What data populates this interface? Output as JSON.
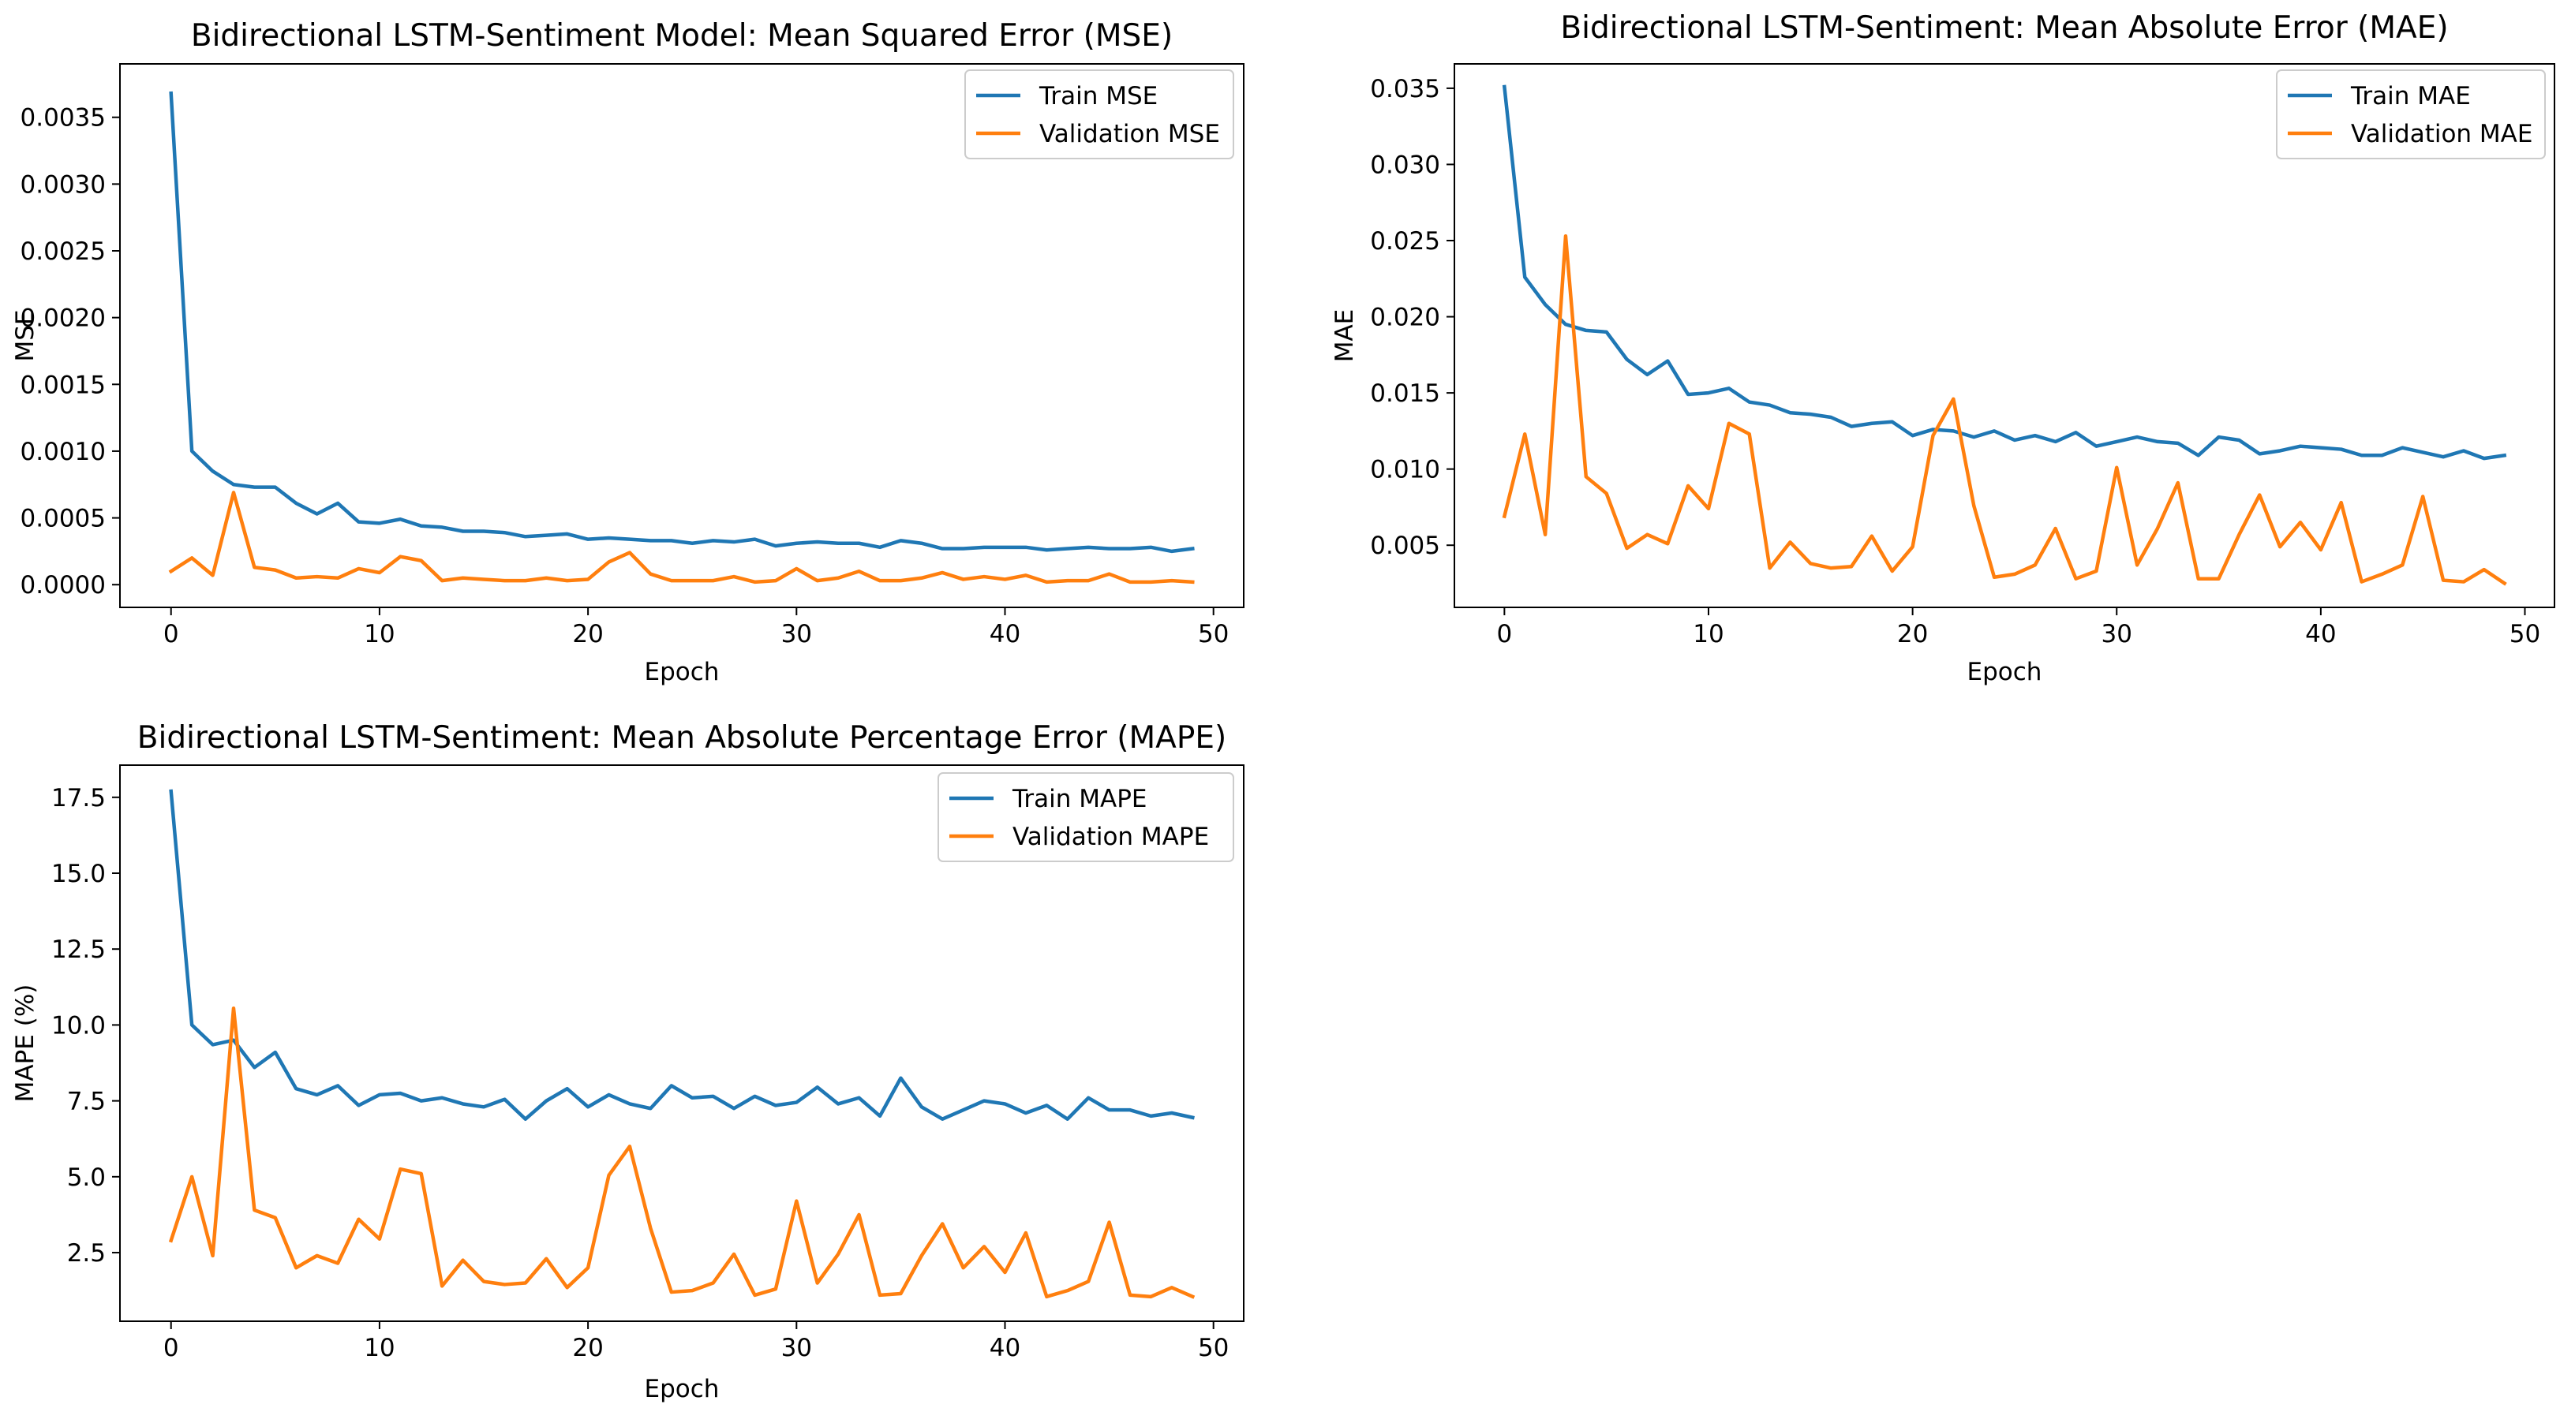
{
  "colors": {
    "train": "#1f77b4",
    "validation": "#ff7f0e"
  },
  "chart_data": [
    {
      "type": "line",
      "title": "Bidirectional LSTM-Sentiment Model: Mean Squared Error (MSE)",
      "xlabel": "Epoch",
      "ylabel": "MSE",
      "xlim": [
        -2.45,
        51.45
      ],
      "ylim": [
        -0.00017,
        0.0039
      ],
      "xticks": [
        0,
        10,
        20,
        30,
        40,
        50
      ],
      "xtick_labels": [
        "0",
        "10",
        "20",
        "30",
        "40",
        "50"
      ],
      "yticks": [
        0,
        0.0005,
        0.001,
        0.0015,
        0.002,
        0.0025,
        0.003,
        0.0035
      ],
      "ytick_labels": [
        "0.0000",
        "0.0005",
        "0.0010",
        "0.0015",
        "0.0020",
        "0.0025",
        "0.0030",
        "0.0035"
      ],
      "grid": false,
      "legend_position": "top-right",
      "series": [
        {
          "name": "Train MSE",
          "color": "#1f77b4",
          "values": [
            0.00368,
            0.001,
            0.00085,
            0.00075,
            0.00073,
            0.00073,
            0.00061,
            0.00053,
            0.00061,
            0.00047,
            0.00046,
            0.00049,
            0.00044,
            0.00043,
            0.0004,
            0.0004,
            0.00039,
            0.00036,
            0.00037,
            0.00038,
            0.00034,
            0.00035,
            0.00034,
            0.00033,
            0.00033,
            0.00031,
            0.00033,
            0.00032,
            0.00034,
            0.00029,
            0.00031,
            0.00032,
            0.00031,
            0.00031,
            0.00028,
            0.00033,
            0.00031,
            0.00027,
            0.00027,
            0.00028,
            0.00028,
            0.00028,
            0.00026,
            0.00027,
            0.00028,
            0.00027,
            0.00027,
            0.00028,
            0.00025,
            0.00027
          ]
        },
        {
          "name": "Validation MSE",
          "color": "#ff7f0e",
          "values": [
            0.0001,
            0.0002,
            7e-05,
            0.00069,
            0.00013,
            0.00011,
            5e-05,
            6e-05,
            5e-05,
            0.00012,
            9e-05,
            0.00021,
            0.00018,
            3e-05,
            5e-05,
            4e-05,
            3e-05,
            3e-05,
            5e-05,
            3e-05,
            4e-05,
            0.00017,
            0.00024,
            8e-05,
            3e-05,
            3e-05,
            3e-05,
            6e-05,
            2e-05,
            3e-05,
            0.00012,
            3e-05,
            5e-05,
            0.0001,
            3e-05,
            3e-05,
            5e-05,
            9e-05,
            4e-05,
            6e-05,
            4e-05,
            7e-05,
            2e-05,
            3e-05,
            3e-05,
            8e-05,
            2e-05,
            2e-05,
            3e-05,
            2e-05
          ]
        }
      ]
    },
    {
      "type": "line",
      "title": "Bidirectional LSTM-Sentiment: Mean Absolute Error (MAE)",
      "xlabel": "Epoch",
      "ylabel": "MAE",
      "xlim": [
        -2.45,
        51.45
      ],
      "ylim": [
        0.00092,
        0.0366
      ],
      "xticks": [
        0,
        10,
        20,
        30,
        40,
        50
      ],
      "xtick_labels": [
        "0",
        "10",
        "20",
        "30",
        "40",
        "50"
      ],
      "yticks": [
        0.005,
        0.01,
        0.015,
        0.02,
        0.025,
        0.03,
        0.035
      ],
      "ytick_labels": [
        "0.005",
        "0.010",
        "0.015",
        "0.020",
        "0.025",
        "0.030",
        "0.035"
      ],
      "grid": false,
      "legend_position": "top-right",
      "series": [
        {
          "name": "Train MAE",
          "color": "#1f77b4",
          "values": [
            0.0351,
            0.0226,
            0.0208,
            0.0195,
            0.0191,
            0.019,
            0.0172,
            0.0162,
            0.0171,
            0.0149,
            0.015,
            0.0153,
            0.0144,
            0.0142,
            0.0137,
            0.0136,
            0.0134,
            0.0128,
            0.013,
            0.0131,
            0.0122,
            0.0126,
            0.0125,
            0.0121,
            0.0125,
            0.0119,
            0.0122,
            0.0118,
            0.0124,
            0.0115,
            0.0118,
            0.0121,
            0.0118,
            0.0117,
            0.0109,
            0.0121,
            0.0119,
            0.011,
            0.0112,
            0.0115,
            0.0114,
            0.0113,
            0.0109,
            0.0109,
            0.0114,
            0.0111,
            0.0108,
            0.0112,
            0.0107,
            0.0109
          ]
        },
        {
          "name": "Validation MAE",
          "color": "#ff7f0e",
          "values": [
            0.0069,
            0.0123,
            0.0057,
            0.0253,
            0.0095,
            0.0084,
            0.0048,
            0.0057,
            0.0051,
            0.0089,
            0.0074,
            0.013,
            0.0123,
            0.0035,
            0.0052,
            0.0038,
            0.0035,
            0.0036,
            0.0056,
            0.0033,
            0.0049,
            0.0122,
            0.0146,
            0.0076,
            0.0029,
            0.0031,
            0.0037,
            0.0061,
            0.0028,
            0.0033,
            0.0101,
            0.0037,
            0.0061,
            0.0091,
            0.0028,
            0.0028,
            0.0057,
            0.0083,
            0.0049,
            0.0065,
            0.0047,
            0.0078,
            0.0026,
            0.0031,
            0.0037,
            0.0082,
            0.0027,
            0.0026,
            0.0034,
            0.0025
          ]
        }
      ]
    },
    {
      "type": "line",
      "title": "Bidirectional LSTM-Sentiment: Mean Absolute Percentage Error (MAPE)",
      "xlabel": "Epoch",
      "ylabel": "MAPE (%)",
      "xlim": [
        -2.45,
        51.45
      ],
      "ylim": [
        0.24,
        18.56
      ],
      "xticks": [
        0,
        10,
        20,
        30,
        40,
        50
      ],
      "xtick_labels": [
        "0",
        "10",
        "20",
        "30",
        "40",
        "50"
      ],
      "yticks": [
        2.5,
        5,
        7.5,
        10,
        12.5,
        15,
        17.5
      ],
      "ytick_labels": [
        "2.5",
        "5.0",
        "7.5",
        "10.0",
        "12.5",
        "15.0",
        "17.5"
      ],
      "grid": false,
      "legend_position": "top-right",
      "series": [
        {
          "name": "Train MAPE",
          "color": "#1f77b4",
          "values": [
            17.7,
            10.0,
            9.35,
            9.5,
            8.6,
            9.1,
            7.9,
            7.7,
            8.0,
            7.35,
            7.7,
            7.75,
            7.5,
            7.6,
            7.4,
            7.3,
            7.55,
            6.9,
            7.5,
            7.9,
            7.3,
            7.7,
            7.4,
            7.25,
            8.0,
            7.6,
            7.65,
            7.25,
            7.65,
            7.35,
            7.45,
            7.95,
            7.4,
            7.6,
            7.0,
            8.25,
            7.3,
            6.9,
            7.2,
            7.5,
            7.4,
            7.1,
            7.35,
            6.9,
            7.6,
            7.2,
            7.2,
            7.0,
            7.1,
            6.95
          ]
        },
        {
          "name": "Validation MAPE",
          "color": "#ff7f0e",
          "values": [
            2.9,
            5.0,
            2.4,
            10.55,
            3.9,
            3.65,
            2.0,
            2.4,
            2.15,
            3.6,
            2.95,
            5.25,
            5.1,
            1.4,
            2.25,
            1.55,
            1.45,
            1.5,
            2.3,
            1.35,
            2.0,
            5.05,
            6.0,
            3.3,
            1.2,
            1.25,
            1.5,
            2.45,
            1.1,
            1.3,
            4.2,
            1.5,
            2.45,
            3.75,
            1.1,
            1.15,
            2.4,
            3.45,
            2.0,
            2.7,
            1.85,
            3.15,
            1.05,
            1.25,
            1.55,
            3.5,
            1.1,
            1.05,
            1.35,
            1.05
          ]
        }
      ]
    }
  ]
}
